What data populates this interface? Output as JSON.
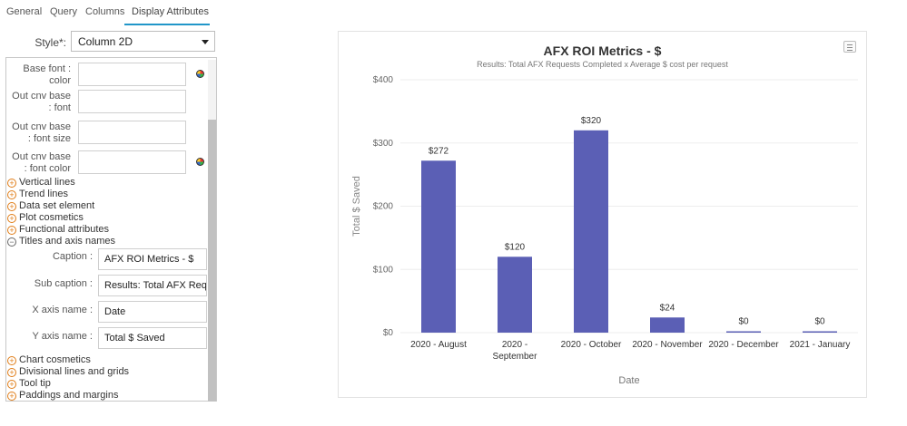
{
  "tabs": [
    {
      "label": "General"
    },
    {
      "label": "Query"
    },
    {
      "label": "Columns"
    },
    {
      "label": "Display Attributes"
    }
  ],
  "style": {
    "label": "Style*:",
    "value": "Column 2D"
  },
  "fields": {
    "base_font_color": {
      "label": "Base font : color",
      "value": ""
    },
    "out_cnv_base_font": {
      "label": "Out cnv base : font",
      "value": ""
    },
    "out_cnv_base_font_size": {
      "label": "Out cnv base : font size",
      "value": ""
    },
    "out_cnv_base_font_color": {
      "label": "Out cnv base : font color",
      "value": ""
    },
    "caption": {
      "label": "Caption :",
      "value": "AFX ROI Metrics - $"
    },
    "sub_caption": {
      "label": "Sub caption :",
      "value": "Results: Total AFX Requ"
    },
    "x_axis_name": {
      "label": "X axis name :",
      "value": "Date"
    },
    "y_axis_name": {
      "label": "Y axis name :",
      "value": "Total $ Saved"
    }
  },
  "sections_top": [
    {
      "label": "Vertical lines",
      "expanded": false
    },
    {
      "label": "Trend lines",
      "expanded": false
    },
    {
      "label": "Data set element",
      "expanded": false
    },
    {
      "label": "Plot cosmetics",
      "expanded": false
    },
    {
      "label": "Functional attributes",
      "expanded": false
    },
    {
      "label": "Titles and axis names",
      "expanded": true
    }
  ],
  "sections_bottom": [
    {
      "label": "Chart cosmetics",
      "expanded": false
    },
    {
      "label": "Divisional lines and grids",
      "expanded": false
    },
    {
      "label": "Tool tip",
      "expanded": false
    },
    {
      "label": "Paddings and margins",
      "expanded": false
    }
  ],
  "icons": {
    "color_picker": "color-wheel-icon",
    "chart_menu": "menu-icon",
    "expand": "plus-circle-icon",
    "collapse": "minus-circle-icon"
  },
  "colors": {
    "bar": "#5b5fb5",
    "tab_active": "#2196c9",
    "expand_icon": "#e07d17"
  },
  "chart_data": {
    "type": "bar",
    "title": "AFX ROI Metrics - $",
    "subtitle": "Results: Total AFX Requests Completed x Average $ cost per request",
    "xlabel": "Date",
    "ylabel": "Total $ Saved",
    "categories": [
      "2020 - August",
      "2020 - September",
      "2020 - October",
      "2020 - November",
      "2020 - December",
      "2021 - January"
    ],
    "category_lines": [
      [
        "2020 - August"
      ],
      [
        "2020 -",
        "September"
      ],
      [
        "2020 - October"
      ],
      [
        "2020 - November"
      ],
      [
        "2020 - December"
      ],
      [
        "2021 - January"
      ]
    ],
    "values": [
      272,
      120,
      320,
      24,
      0,
      0
    ],
    "value_labels": [
      "$272",
      "$120",
      "$320",
      "$24",
      "$0",
      "$0"
    ],
    "ylim": [
      0,
      400
    ],
    "yticks": [
      0,
      100,
      200,
      300,
      400
    ],
    "ytick_labels": [
      "$0",
      "$100",
      "$200",
      "$300",
      "$400"
    ],
    "grid": true,
    "legend": "none"
  }
}
